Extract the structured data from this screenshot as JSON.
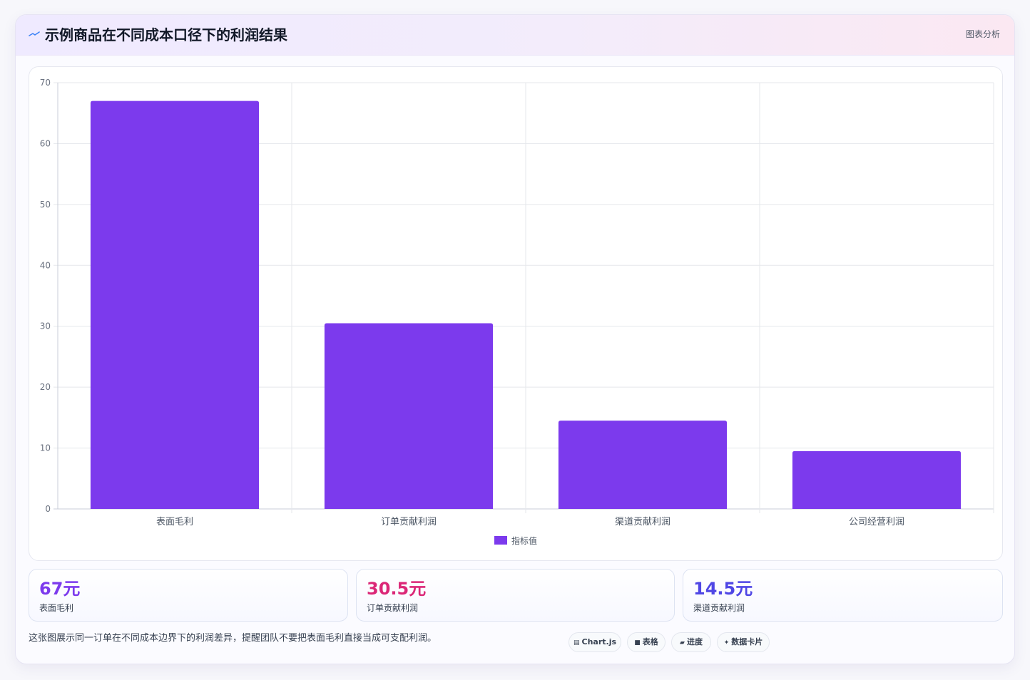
{
  "header": {
    "icon": "trend-line-icon",
    "title": "示例商品在不同成本口径下的利润结果",
    "link_label": "图表分析"
  },
  "chart_data": {
    "type": "bar",
    "categories": [
      "表面毛利",
      "订单贡献利润",
      "渠道贡献利润",
      "公司经营利润"
    ],
    "series": [
      {
        "name": "指标值",
        "values": [
          67,
          30.5,
          14.5,
          9.5
        ],
        "color": "#7c3aed"
      }
    ],
    "ylim": [
      0,
      70
    ],
    "yticks": [
      0,
      10,
      20,
      30,
      40,
      50,
      60,
      70
    ],
    "grid": true,
    "legend": "bottom"
  },
  "stats": [
    {
      "value": "67元",
      "label": "表面毛利",
      "color": "#7c3aed"
    },
    {
      "value": "30.5元",
      "label": "订单贡献利润",
      "color": "#db2777"
    },
    {
      "value": "14.5元",
      "label": "渠道贡献利润",
      "color": "#4f46e5"
    }
  ],
  "footer": {
    "note": "这张图展示同一订单在不同成本边界下的利润差异，提醒团队不要把表面毛利直接当成可支配利润。"
  },
  "chips": [
    {
      "icon": "▤",
      "icon_name": "chart-icon",
      "label": "Chart.js"
    },
    {
      "icon": "■",
      "icon_name": "table-icon",
      "label": "表格"
    },
    {
      "icon": "▰",
      "icon_name": "progress-icon",
      "label": "进度"
    },
    {
      "icon": "✦",
      "icon_name": "sparkle-icon",
      "label": "数据卡片"
    }
  ]
}
